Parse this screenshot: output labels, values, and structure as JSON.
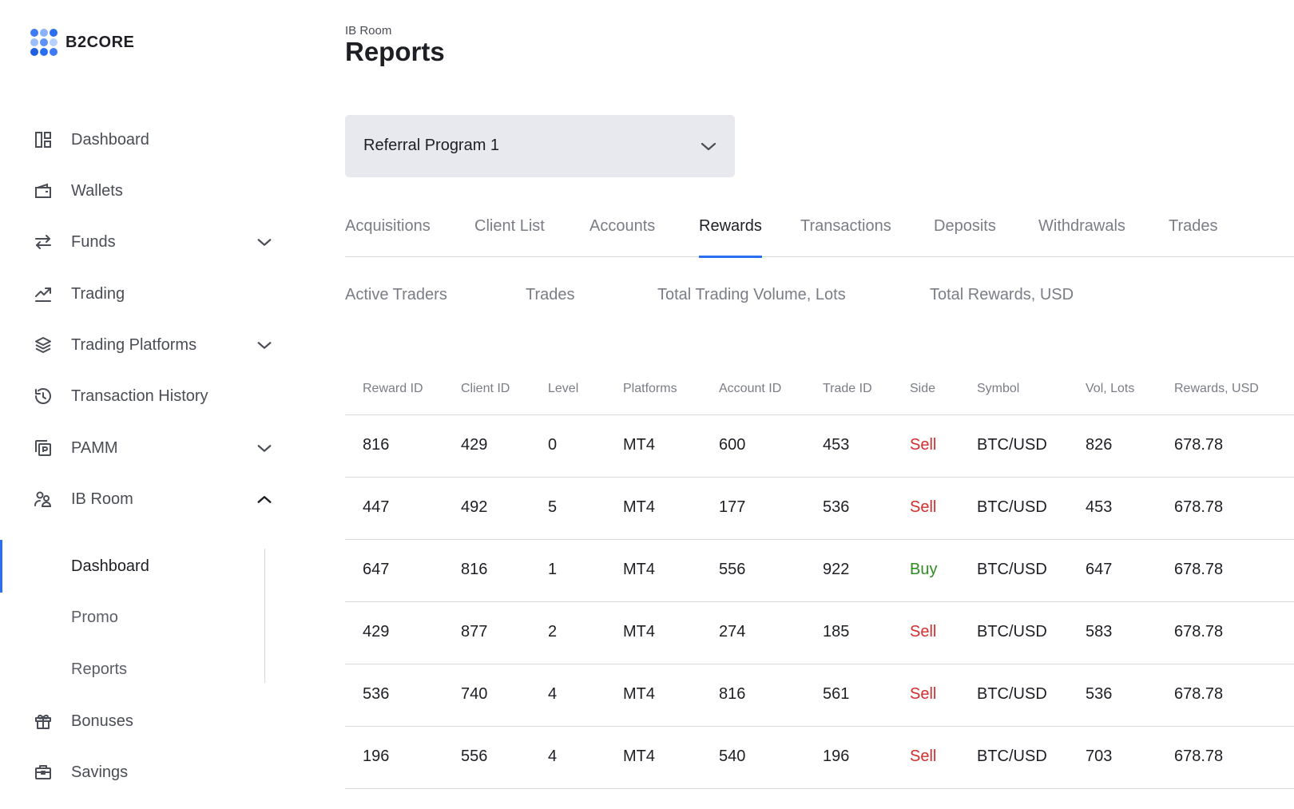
{
  "brand": {
    "name": "B2CORE",
    "accent": "#2a6ff2",
    "sell_color": "#d32f2f",
    "buy_color": "#2e8b22"
  },
  "sidebar": {
    "items": [
      {
        "label": "Dashboard",
        "icon": "dashboard-icon"
      },
      {
        "label": "Wallets",
        "icon": "wallet-icon"
      },
      {
        "label": "Funds",
        "icon": "transfer-icon",
        "expanded": false
      },
      {
        "label": "Trading",
        "icon": "trend-icon"
      },
      {
        "label": "Trading Platforms",
        "icon": "layers-icon",
        "expanded": false
      },
      {
        "label": "Transaction History",
        "icon": "history-icon"
      },
      {
        "label": "PAMM",
        "icon": "pamm-icon",
        "expanded": false
      },
      {
        "label": "IB Room",
        "icon": "ib-room-icon",
        "expanded": true
      },
      {
        "label": "Bonuses",
        "icon": "gift-icon"
      },
      {
        "label": "Savings",
        "icon": "briefcase-icon"
      }
    ],
    "sub_items": [
      {
        "label": "Dashboard",
        "active": true
      },
      {
        "label": "Promo",
        "active": false
      },
      {
        "label": "Reports",
        "active": false
      }
    ]
  },
  "header": {
    "breadcrumb": "IB Room",
    "title": "Reports"
  },
  "program_select": {
    "value": "Referral Program 1"
  },
  "tabs": [
    {
      "label": "Acquisitions",
      "active": false
    },
    {
      "label": "Client List",
      "active": false
    },
    {
      "label": "Accounts",
      "active": false
    },
    {
      "label": "Rewards",
      "active": true
    },
    {
      "label": "Transactions",
      "active": false
    },
    {
      "label": "Deposits",
      "active": false
    },
    {
      "label": "Withdrawals",
      "active": false
    },
    {
      "label": "Trades",
      "active": false
    }
  ],
  "stats": [
    "Active Traders",
    "Trades",
    "Total Trading Volume, Lots",
    "Total Rewards, USD"
  ],
  "table": {
    "columns": [
      "Reward ID",
      "Client ID",
      "Level",
      "Platforms",
      "Account ID",
      "Trade ID",
      "Side",
      "Symbol",
      "Vol, Lots",
      "Rewards, USD"
    ],
    "rows": [
      [
        "816",
        "429",
        "0",
        "MT4",
        "600",
        "453",
        "Sell",
        "BTC/USD",
        "826",
        "678.78"
      ],
      [
        "447",
        "492",
        "5",
        "MT4",
        "177",
        "536",
        "Sell",
        "BTC/USD",
        "453",
        "678.78"
      ],
      [
        "647",
        "816",
        "1",
        "MT4",
        "556",
        "922",
        "Buy",
        "BTC/USD",
        "647",
        "678.78"
      ],
      [
        "429",
        "877",
        "2",
        "MT4",
        "274",
        "185",
        "Sell",
        "BTC/USD",
        "583",
        "678.78"
      ],
      [
        "536",
        "740",
        "4",
        "MT4",
        "816",
        "561",
        "Sell",
        "BTC/USD",
        "536",
        "678.78"
      ],
      [
        "196",
        "556",
        "4",
        "MT4",
        "540",
        "196",
        "Sell",
        "BTC/USD",
        "703",
        "678.78"
      ]
    ]
  }
}
